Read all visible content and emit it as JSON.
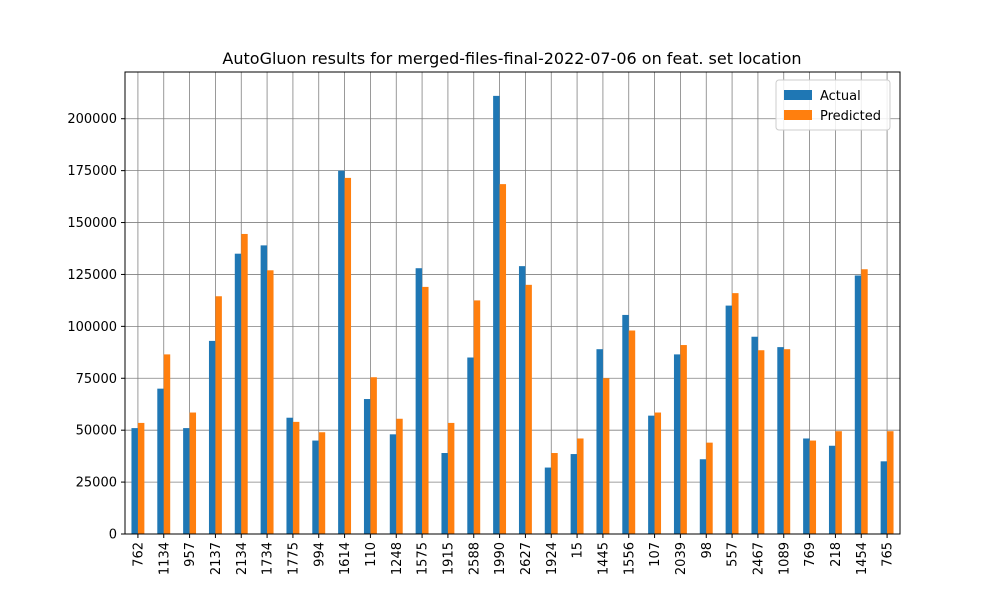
{
  "chart_data": {
    "type": "bar",
    "title": "AutoGluon results for merged-files-final-2022-07-06 on feat. set location",
    "xlabel": "",
    "ylabel": "",
    "categories": [
      "762",
      "1134",
      "957",
      "2137",
      "2134",
      "1734",
      "1775",
      "994",
      "1614",
      "110",
      "1248",
      "1575",
      "1915",
      "2588",
      "1990",
      "2627",
      "1924",
      "15",
      "1445",
      "1556",
      "107",
      "2039",
      "98",
      "557",
      "2467",
      "1089",
      "769",
      "218",
      "1454",
      "765"
    ],
    "series": [
      {
        "name": "Actual",
        "color": "#1f77b4",
        "values": [
          51000,
          70000,
          51000,
          93000,
          135000,
          139000,
          56000,
          45000,
          175000,
          65000,
          48000,
          128000,
          39000,
          85000,
          211000,
          129000,
          32000,
          38500,
          89000,
          105500,
          57000,
          86500,
          36000,
          110000,
          95000,
          90000,
          46000,
          42500,
          124500,
          35000
        ]
      },
      {
        "name": "Predicted",
        "color": "#ff7f0e",
        "values": [
          53500,
          86500,
          58500,
          114500,
          144500,
          127000,
          54000,
          49000,
          171500,
          75500,
          55500,
          119000,
          53500,
          112500,
          168500,
          120000,
          39000,
          46000,
          75000,
          98000,
          58500,
          91000,
          44000,
          116000,
          88500,
          89000,
          45000,
          49500,
          127500,
          49500
        ]
      }
    ],
    "ylim": [
      0,
      222500
    ],
    "yticks": [
      0,
      25000,
      50000,
      75000,
      100000,
      125000,
      150000,
      175000,
      200000
    ],
    "grid": true,
    "legend_position": "top-right"
  }
}
